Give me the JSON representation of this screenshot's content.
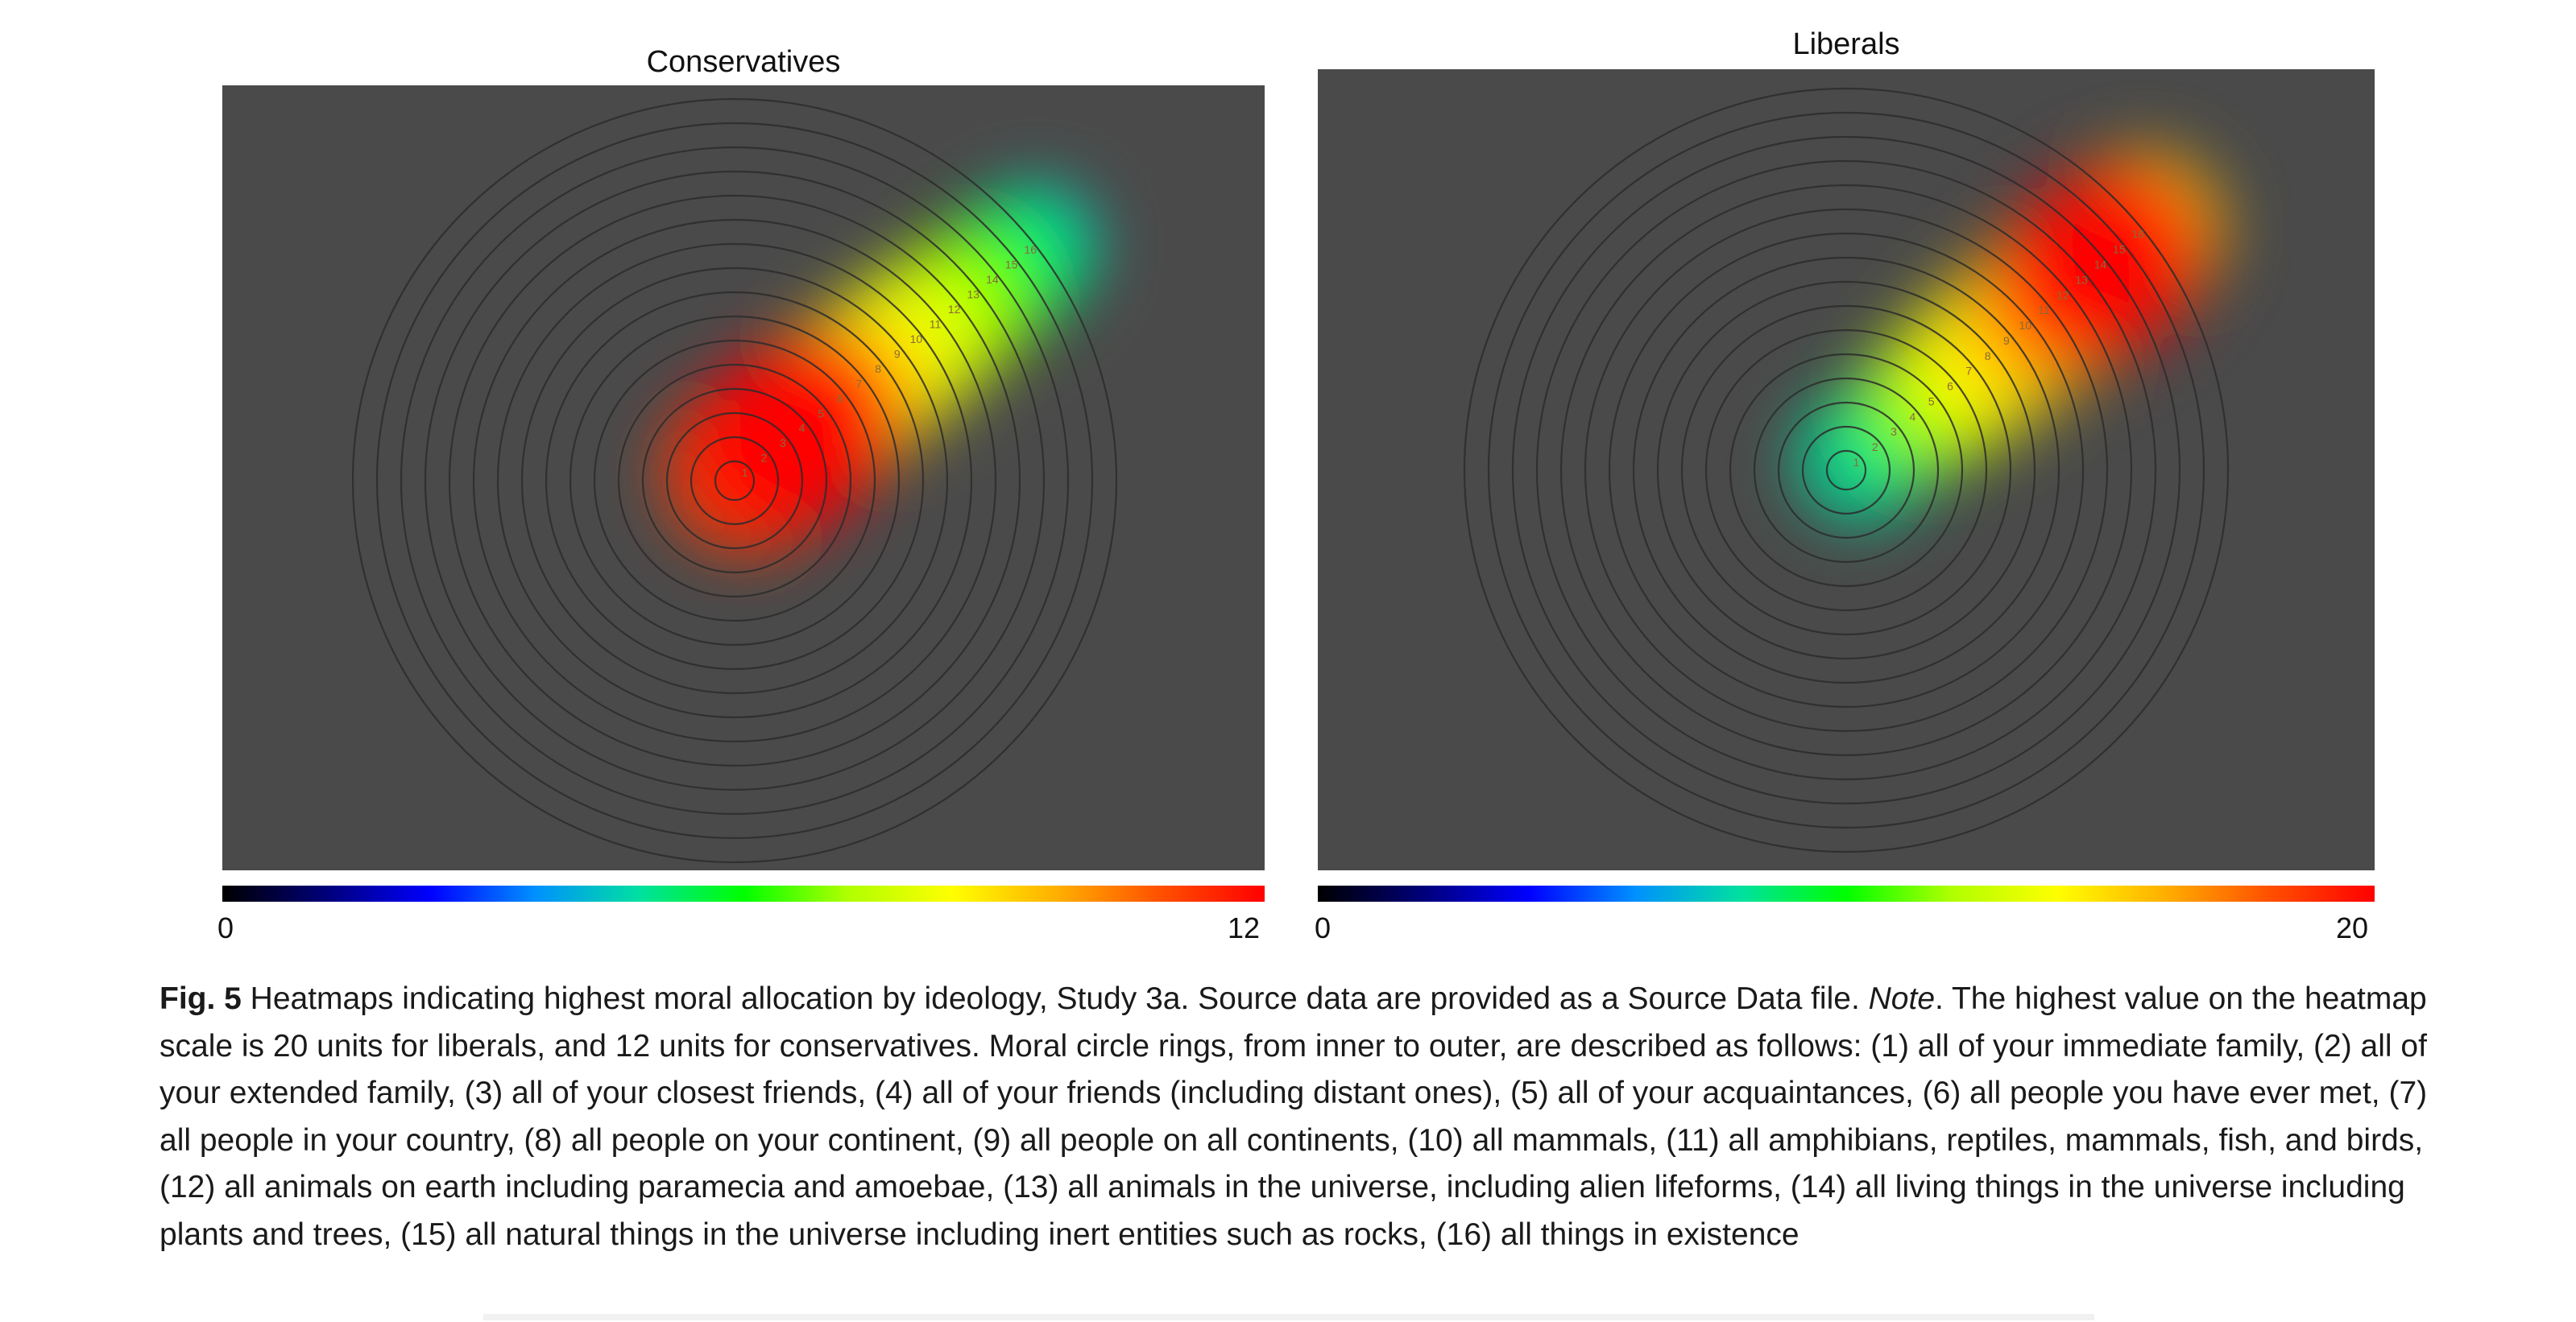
{
  "chart_data": [
    {
      "type": "heatmap",
      "title": "Conservatives",
      "colorbar": {
        "min_label": "0",
        "max_label": "12",
        "range": [
          0,
          12
        ]
      },
      "ring_labels": [
        "1",
        "2",
        "3",
        "4",
        "5",
        "6",
        "7",
        "8",
        "9",
        "10",
        "11",
        "12",
        "13",
        "14",
        "15",
        "16"
      ],
      "peak_value": 12,
      "intensity_profile": [
        {
          "ring": 1,
          "value": 11
        },
        {
          "ring": 2,
          "value": 11.5
        },
        {
          "ring": 3,
          "value": 12
        },
        {
          "ring": 4,
          "value": 11.5
        },
        {
          "ring": 5,
          "value": 10
        },
        {
          "ring": 6,
          "value": 9
        },
        {
          "ring": 7,
          "value": 8.5
        },
        {
          "ring": 8,
          "value": 8
        },
        {
          "ring": 9,
          "value": 8
        },
        {
          "ring": 10,
          "value": 7.5
        },
        {
          "ring": 11,
          "value": 7
        },
        {
          "ring": 12,
          "value": 6.5
        },
        {
          "ring": 13,
          "value": 6
        },
        {
          "ring": 14,
          "value": 5.5
        },
        {
          "ring": 15,
          "value": 5
        },
        {
          "ring": 16,
          "value": 4.5
        }
      ],
      "colors": {
        "background": "#4a4a4a",
        "rings": "#2b2b2b"
      }
    },
    {
      "type": "heatmap",
      "title": "Liberals",
      "colorbar": {
        "min_label": "0",
        "max_label": "20",
        "range": [
          0,
          20
        ]
      },
      "ring_labels": [
        "1",
        "2",
        "3",
        "4",
        "5",
        "6",
        "7",
        "8",
        "9",
        "10",
        "11",
        "12",
        "13",
        "14",
        "15",
        "16"
      ],
      "peak_value": 20,
      "intensity_profile": [
        {
          "ring": 1,
          "value": 8
        },
        {
          "ring": 2,
          "value": 8
        },
        {
          "ring": 3,
          "value": 8.5
        },
        {
          "ring": 4,
          "value": 9.5
        },
        {
          "ring": 5,
          "value": 11
        },
        {
          "ring": 6,
          "value": 12
        },
        {
          "ring": 7,
          "value": 13
        },
        {
          "ring": 8,
          "value": 14
        },
        {
          "ring": 9,
          "value": 14.5
        },
        {
          "ring": 10,
          "value": 15
        },
        {
          "ring": 11,
          "value": 16
        },
        {
          "ring": 12,
          "value": 17
        },
        {
          "ring": 13,
          "value": 19
        },
        {
          "ring": 14,
          "value": 20
        },
        {
          "ring": 15,
          "value": 18
        },
        {
          "ring": 16,
          "value": 15
        }
      ],
      "colors": {
        "background": "#4a4a4a",
        "rings": "#2b2b2b"
      }
    }
  ],
  "colormap": [
    "#000000",
    "#00007a",
    "#0000ff",
    "#0090ff",
    "#00e0a0",
    "#00ff00",
    "#b0ff00",
    "#ffff00",
    "#ffb000",
    "#ff5000",
    "#ff0000"
  ],
  "caption": {
    "fig_label": "Fig. 5",
    "text_a": " Heatmaps indicating highest moral allocation by ideology, Study 3a. Source data are provided as a Source Data file. ",
    "note_label": "Note",
    "text_b": ". The highest value on the heatmap scale is 20 units for liberals, and 12 units for conservatives. Moral circle rings, from inner to outer, are described as follows: (1) all of your immediate family, (2) all of your extended family, (3) all of your closest friends, (4) all of your friends (including distant ones), (5) all of your acquaintances, (6) all people you have ever met, (7) all people in your country, (8) all people on your continent, (9) all people on all continents, (10) all mammals, (11) all amphibians, reptiles, mammals, fish, and birds, (12) all animals on earth including paramecia and amoebae, (13) all animals in the universe, including alien lifeforms, (14) all living things in the universe including plants and trees, (15) all natural things in the universe including inert entities such as rocks, (16) all things in existence"
  }
}
